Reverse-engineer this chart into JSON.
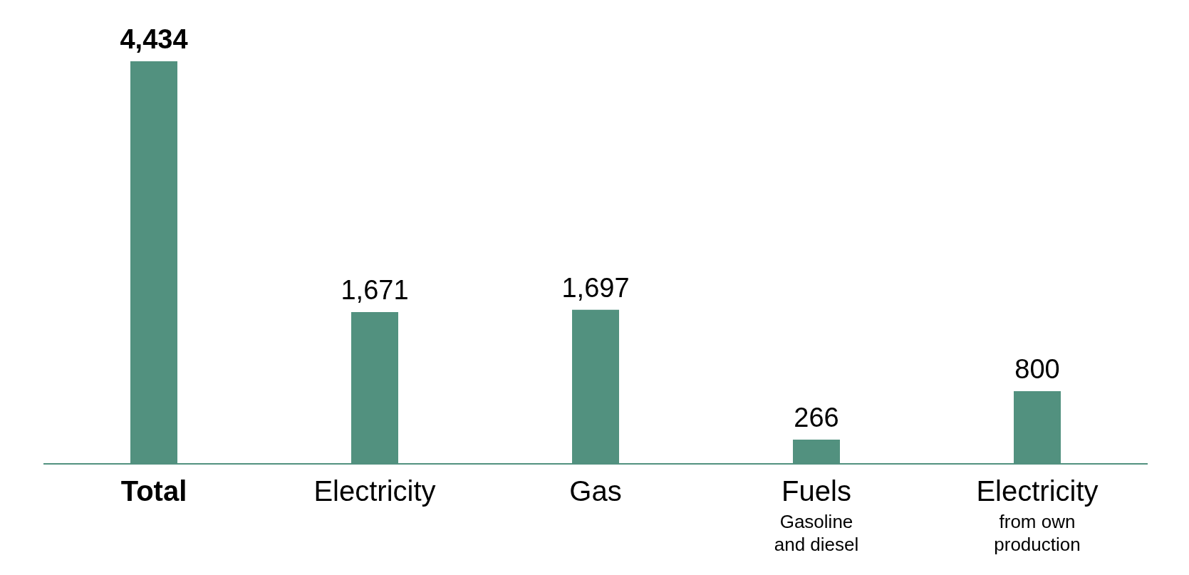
{
  "chart_data": {
    "type": "bar",
    "categories": [
      "Total",
      "Electricity",
      "Gas",
      "Fuels\nGasoline and diesel",
      "Electricity\nfrom own production"
    ],
    "values": [
      4434,
      1671,
      1697,
      266,
      800
    ],
    "value_labels": [
      "4,434",
      "1,671",
      "1,697",
      "266",
      "800"
    ],
    "color": "#52917f"
  }
}
